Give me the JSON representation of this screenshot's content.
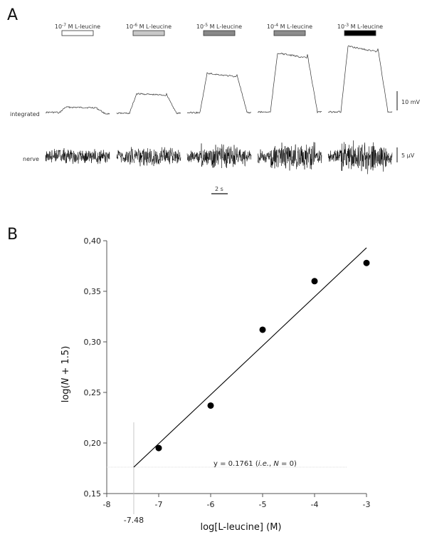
{
  "panel_a": {
    "letter": "A",
    "stimuli": [
      {
        "exp": "-7",
        "text": " M L-leucine",
        "fill": "#ffffff"
      },
      {
        "exp": "-6",
        "text": " M L-leucine",
        "fill": "#c8c8c8"
      },
      {
        "exp": "-5",
        "text": " M L-leucine",
        "fill": "#888888"
      },
      {
        "exp": "-4",
        "text": " M L-leucine",
        "fill": "#8c8c8c"
      },
      {
        "exp": "-3",
        "text": " M L-leucine",
        "fill": "#000000"
      }
    ],
    "integrated_label": "integrated",
    "nerve_label": "nerve",
    "integrated_scale": "10 mV",
    "nerve_scale": "5 µV",
    "time_scale": "2 s",
    "response_amplitudes": [
      0.1,
      0.3,
      0.6,
      0.9,
      1.0
    ]
  },
  "panel_b": {
    "letter": "B"
  },
  "chart_data": {
    "type": "scatter",
    "title": "",
    "xlabel": "log[L-leucine] (M)",
    "ylabel": "log(N + 1.5)",
    "xlim": [
      -8,
      -3
    ],
    "ylim": [
      0.15,
      0.4
    ],
    "x_ticks": [
      "-8",
      "-7",
      "-6",
      "-5",
      "-4",
      "-3"
    ],
    "y_ticks": [
      "0,15",
      "0,20",
      "0,25",
      "0,30",
      "0,35",
      "0,40"
    ],
    "points": [
      {
        "x": -7,
        "y": 0.195
      },
      {
        "x": -6,
        "y": 0.237
      },
      {
        "x": -5,
        "y": 0.312
      },
      {
        "x": -4,
        "y": 0.36
      },
      {
        "x": -3,
        "y": 0.378
      }
    ],
    "regression": {
      "x_start": -7.48,
      "y_start": 0.1761,
      "x_end": -3,
      "y_end": 0.393
    },
    "threshold": {
      "y": 0.1761,
      "x": -7.48,
      "x_label": "-7.48",
      "eq_prefix": "y = 0.1761 (",
      "eq_ie": "i.e.",
      "eq_mid": ", ",
      "eq_N": "N",
      "eq_suffix": " = 0)"
    },
    "point_color": "#000000",
    "line_color": "#000000"
  }
}
